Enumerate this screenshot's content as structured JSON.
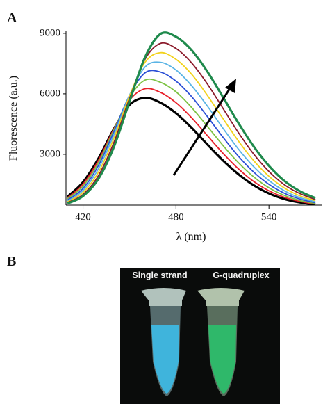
{
  "panels": [
    "A",
    "B"
  ],
  "photo": {
    "labels": [
      "Single strand",
      "G-quadruplex"
    ]
  },
  "chart_data": {
    "type": "line",
    "x_label": "λ (nm)",
    "y_label": "Fluorescence (a.u.)",
    "x": [
      410,
      420,
      430,
      440,
      450,
      460,
      470,
      480,
      490,
      500,
      510,
      520,
      530,
      540,
      550,
      560,
      570
    ],
    "xlim": [
      409,
      574
    ],
    "xticks": [
      420,
      480,
      540
    ],
    "ylim": [
      480,
      9100
    ],
    "yticks": [
      3000,
      6000,
      9000
    ],
    "series": [
      {
        "color": "#000000",
        "values": [
          900,
          1620,
          2800,
          4270,
          5450,
          5800,
          5560,
          5040,
          4320,
          3510,
          2720,
          2030,
          1470,
          1060,
          780,
          610,
          510
        ]
      },
      {
        "color": "#e8202a",
        "values": [
          840,
          1520,
          2710,
          4270,
          5680,
          6250,
          6070,
          5560,
          4820,
          3950,
          3080,
          2300,
          1660,
          1190,
          870,
          660,
          530
        ]
      },
      {
        "color": "#7cc243",
        "values": [
          790,
          1420,
          2590,
          4220,
          5830,
          6680,
          6570,
          6100,
          5330,
          4410,
          3470,
          2610,
          1890,
          1340,
          960,
          710,
          560
        ]
      },
      {
        "color": "#2b4fd6",
        "values": [
          730,
          1310,
          2450,
          4130,
          5920,
          7040,
          7080,
          6630,
          5870,
          4900,
          3880,
          2930,
          2130,
          1510,
          1070,
          780,
          600
        ]
      },
      {
        "color": "#5ab4e5",
        "values": [
          680,
          1210,
          2290,
          3980,
          5930,
          7330,
          7560,
          7180,
          6410,
          5420,
          4330,
          3290,
          2400,
          1700,
          1190,
          850,
          650
        ]
      },
      {
        "color": "#f2d21b",
        "values": [
          640,
          1110,
          2120,
          3800,
          5880,
          7560,
          8040,
          7710,
          6980,
          5950,
          4810,
          3690,
          2700,
          1910,
          1330,
          940,
          700
        ]
      },
      {
        "color": "#8b1a2a",
        "values": [
          600,
          1010,
          1950,
          3600,
          5760,
          7710,
          8500,
          8250,
          7540,
          6520,
          5320,
          4110,
          3030,
          2150,
          1490,
          1050,
          760
        ]
      },
      {
        "color": "#1f8a4c",
        "values": [
          560,
          930,
          1790,
          3380,
          5620,
          7810,
          8970,
          8830,
          8170,
          7130,
          5880,
          4590,
          3410,
          2430,
          1680,
          1170,
          830
        ]
      }
    ]
  }
}
